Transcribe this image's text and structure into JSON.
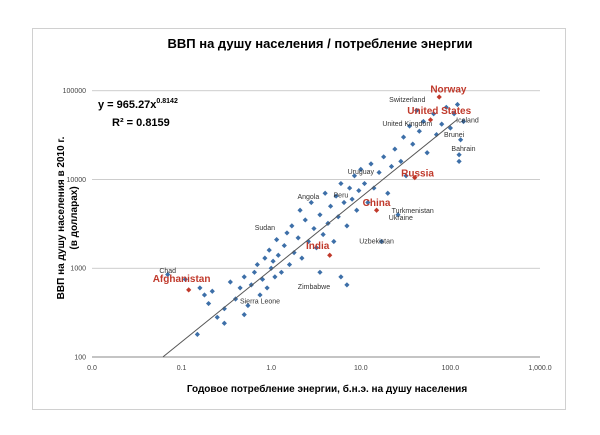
{
  "chart_data": {
    "type": "scatter",
    "title": "ВВП на душу населения / потребление энергии",
    "xlabel": "Годовое потребление энергии, б.н.э. на душу населения",
    "ylabel_line1": "ВВП на душу населения в 2010 г.",
    "ylabel_line2": "(в долларах)",
    "x_scale": "log",
    "y_scale": "log",
    "xlim": [
      0.01,
      1000
    ],
    "ylim": [
      100,
      200000
    ],
    "x_ticks": [
      {
        "value": 0.01,
        "label": "0.0"
      },
      {
        "value": 0.1,
        "label": "0.1"
      },
      {
        "value": 1,
        "label": "1.0"
      },
      {
        "value": 10,
        "label": "10.0"
      },
      {
        "value": 100,
        "label": "100.0"
      },
      {
        "value": 1000,
        "label": "1,000.0"
      }
    ],
    "y_ticks": [
      {
        "value": 100,
        "label": "100"
      },
      {
        "value": 1000,
        "label": "1000"
      },
      {
        "value": 10000,
        "label": "10000"
      },
      {
        "value": 100000,
        "label": "100000"
      }
    ],
    "grid": true,
    "trendline": {
      "equation": "y = 965.27x",
      "exponent": "0.8142",
      "r_squared": "R² = 0.8159",
      "a": 965.27,
      "b": 0.8142,
      "x_range": [
        0.062,
        120
      ]
    },
    "point_color": "#3d6fa8",
    "highlight_color": "#c0392b",
    "labels": [
      {
        "text": "Norway",
        "x": 95,
        "y": 95000,
        "highlight": true
      },
      {
        "text": "Switzerland",
        "x": 33,
        "y": 75000,
        "highlight": false
      },
      {
        "text": "United States",
        "x": 75,
        "y": 55000,
        "highlight": true
      },
      {
        "text": "United Kingdom",
        "x": 33,
        "y": 40000,
        "highlight": false
      },
      {
        "text": "Iceland",
        "x": 155,
        "y": 44000,
        "highlight": false
      },
      {
        "text": "Brunei",
        "x": 110,
        "y": 30000,
        "highlight": false
      },
      {
        "text": "Bahrain",
        "x": 140,
        "y": 21000,
        "highlight": false
      },
      {
        "text": "Uruguay",
        "x": 10,
        "y": 11500,
        "highlight": false
      },
      {
        "text": "Russia",
        "x": 43,
        "y": 10800,
        "highlight": true
      },
      {
        "text": "Angola",
        "x": 2.6,
        "y": 6000,
        "highlight": false
      },
      {
        "text": "Peru",
        "x": 6,
        "y": 6300,
        "highlight": false
      },
      {
        "text": "China",
        "x": 15,
        "y": 5000,
        "highlight": true
      },
      {
        "text": "Turkmenistan",
        "x": 38,
        "y": 4200,
        "highlight": false
      },
      {
        "text": "Ukraine",
        "x": 28,
        "y": 3500,
        "highlight": false
      },
      {
        "text": "Sudan",
        "x": 0.85,
        "y": 2700,
        "highlight": false
      },
      {
        "text": "India",
        "x": 3.3,
        "y": 1650,
        "highlight": true
      },
      {
        "text": "Uzbekistan",
        "x": 15,
        "y": 1900,
        "highlight": false
      },
      {
        "text": "Chad",
        "x": 0.07,
        "y": 880,
        "highlight": false
      },
      {
        "text": "Afghanistan",
        "x": 0.1,
        "y": 700,
        "highlight": true
      },
      {
        "text": "Zimbabwe",
        "x": 3,
        "y": 580,
        "highlight": false
      },
      {
        "text": "Sierra Leone",
        "x": 0.75,
        "y": 400,
        "highlight": false
      }
    ],
    "points": [
      {
        "x": 75,
        "y": 85000,
        "hl": true
      },
      {
        "x": 60,
        "y": 47000,
        "hl": true
      },
      {
        "x": 40,
        "y": 10500,
        "hl": true
      },
      {
        "x": 15,
        "y": 4500,
        "hl": true
      },
      {
        "x": 4.5,
        "y": 1400,
        "hl": true
      },
      {
        "x": 0.12,
        "y": 570,
        "hl": true
      },
      {
        "x": 0.11,
        "y": 750,
        "hl": false
      },
      {
        "x": 0.15,
        "y": 180,
        "hl": false
      },
      {
        "x": 0.16,
        "y": 600,
        "hl": false
      },
      {
        "x": 0.18,
        "y": 500,
        "hl": false
      },
      {
        "x": 0.2,
        "y": 400,
        "hl": false
      },
      {
        "x": 0.22,
        "y": 550,
        "hl": false
      },
      {
        "x": 0.25,
        "y": 280,
        "hl": false
      },
      {
        "x": 0.3,
        "y": 350,
        "hl": false
      },
      {
        "x": 0.35,
        "y": 700,
        "hl": false
      },
      {
        "x": 0.4,
        "y": 450,
        "hl": false
      },
      {
        "x": 0.45,
        "y": 600,
        "hl": false
      },
      {
        "x": 0.5,
        "y": 800,
        "hl": false
      },
      {
        "x": 0.55,
        "y": 380,
        "hl": false
      },
      {
        "x": 0.6,
        "y": 650,
        "hl": false
      },
      {
        "x": 0.65,
        "y": 900,
        "hl": false
      },
      {
        "x": 0.7,
        "y": 1100,
        "hl": false
      },
      {
        "x": 0.75,
        "y": 500,
        "hl": false
      },
      {
        "x": 0.8,
        "y": 750,
        "hl": false
      },
      {
        "x": 0.85,
        "y": 1300,
        "hl": false
      },
      {
        "x": 0.9,
        "y": 600,
        "hl": false
      },
      {
        "x": 0.95,
        "y": 1600,
        "hl": false
      },
      {
        "x": 1.0,
        "y": 1000,
        "hl": false
      },
      {
        "x": 1.05,
        "y": 1200,
        "hl": false
      },
      {
        "x": 1.1,
        "y": 800,
        "hl": false
      },
      {
        "x": 1.15,
        "y": 2100,
        "hl": false
      },
      {
        "x": 1.2,
        "y": 1400,
        "hl": false
      },
      {
        "x": 1.3,
        "y": 900,
        "hl": false
      },
      {
        "x": 1.4,
        "y": 1800,
        "hl": false
      },
      {
        "x": 1.5,
        "y": 2500,
        "hl": false
      },
      {
        "x": 1.6,
        "y": 1100,
        "hl": false
      },
      {
        "x": 1.7,
        "y": 3000,
        "hl": false
      },
      {
        "x": 1.8,
        "y": 1500,
        "hl": false
      },
      {
        "x": 2.0,
        "y": 2200,
        "hl": false
      },
      {
        "x": 2.1,
        "y": 4500,
        "hl": false
      },
      {
        "x": 2.2,
        "y": 1300,
        "hl": false
      },
      {
        "x": 2.4,
        "y": 3500,
        "hl": false
      },
      {
        "x": 2.6,
        "y": 2000,
        "hl": false
      },
      {
        "x": 2.8,
        "y": 5500,
        "hl": false
      },
      {
        "x": 3.0,
        "y": 2800,
        "hl": false
      },
      {
        "x": 3.2,
        "y": 1700,
        "hl": false
      },
      {
        "x": 3.5,
        "y": 4000,
        "hl": false
      },
      {
        "x": 3.8,
        "y": 2400,
        "hl": false
      },
      {
        "x": 4.0,
        "y": 7000,
        "hl": false
      },
      {
        "x": 4.3,
        "y": 3200,
        "hl": false
      },
      {
        "x": 4.6,
        "y": 5000,
        "hl": false
      },
      {
        "x": 5.0,
        "y": 2000,
        "hl": false
      },
      {
        "x": 5.3,
        "y": 6500,
        "hl": false
      },
      {
        "x": 5.6,
        "y": 3800,
        "hl": false
      },
      {
        "x": 6.0,
        "y": 9000,
        "hl": false
      },
      {
        "x": 6.5,
        "y": 5500,
        "hl": false
      },
      {
        "x": 7.0,
        "y": 3000,
        "hl": false
      },
      {
        "x": 7.5,
        "y": 8000,
        "hl": false
      },
      {
        "x": 8.0,
        "y": 6000,
        "hl": false
      },
      {
        "x": 8.5,
        "y": 11000,
        "hl": false
      },
      {
        "x": 9.0,
        "y": 4500,
        "hl": false
      },
      {
        "x": 9.5,
        "y": 7500,
        "hl": false
      },
      {
        "x": 10,
        "y": 13000,
        "hl": false
      },
      {
        "x": 11,
        "y": 9000,
        "hl": false
      },
      {
        "x": 12,
        "y": 5500,
        "hl": false
      },
      {
        "x": 13,
        "y": 15000,
        "hl": false
      },
      {
        "x": 14,
        "y": 8000,
        "hl": false
      },
      {
        "x": 16,
        "y": 12000,
        "hl": false
      },
      {
        "x": 17,
        "y": 2000,
        "hl": false
      },
      {
        "x": 18,
        "y": 18000,
        "hl": false
      },
      {
        "x": 20,
        "y": 7000,
        "hl": false
      },
      {
        "x": 22,
        "y": 14000,
        "hl": false
      },
      {
        "x": 24,
        "y": 22000,
        "hl": false
      },
      {
        "x": 26,
        "y": 4000,
        "hl": false
      },
      {
        "x": 28,
        "y": 16000,
        "hl": false
      },
      {
        "x": 30,
        "y": 30000,
        "hl": false
      },
      {
        "x": 32,
        "y": 11000,
        "hl": false
      },
      {
        "x": 35,
        "y": 40000,
        "hl": false
      },
      {
        "x": 38,
        "y": 25000,
        "hl": false
      },
      {
        "x": 42,
        "y": 60000,
        "hl": false
      },
      {
        "x": 45,
        "y": 35000,
        "hl": false
      },
      {
        "x": 50,
        "y": 45000,
        "hl": false
      },
      {
        "x": 55,
        "y": 20000,
        "hl": false
      },
      {
        "x": 65,
        "y": 55000,
        "hl": false
      },
      {
        "x": 70,
        "y": 32000,
        "hl": false
      },
      {
        "x": 80,
        "y": 42000,
        "hl": false
      },
      {
        "x": 90,
        "y": 65000,
        "hl": false
      },
      {
        "x": 100,
        "y": 38000,
        "hl": false
      },
      {
        "x": 110,
        "y": 55000,
        "hl": false
      },
      {
        "x": 120,
        "y": 70000,
        "hl": false
      },
      {
        "x": 130,
        "y": 28000,
        "hl": false
      },
      {
        "x": 140,
        "y": 45000,
        "hl": false
      },
      {
        "x": 125,
        "y": 19000,
        "hl": false
      },
      {
        "x": 125,
        "y": 16000,
        "hl": false
      },
      {
        "x": 0.07,
        "y": 850,
        "hl": false
      },
      {
        "x": 0.5,
        "y": 300,
        "hl": false
      },
      {
        "x": 0.3,
        "y": 240,
        "hl": false
      },
      {
        "x": 6.0,
        "y": 800,
        "hl": false
      },
      {
        "x": 7.0,
        "y": 650,
        "hl": false
      },
      {
        "x": 3.5,
        "y": 900,
        "hl": false
      }
    ]
  }
}
